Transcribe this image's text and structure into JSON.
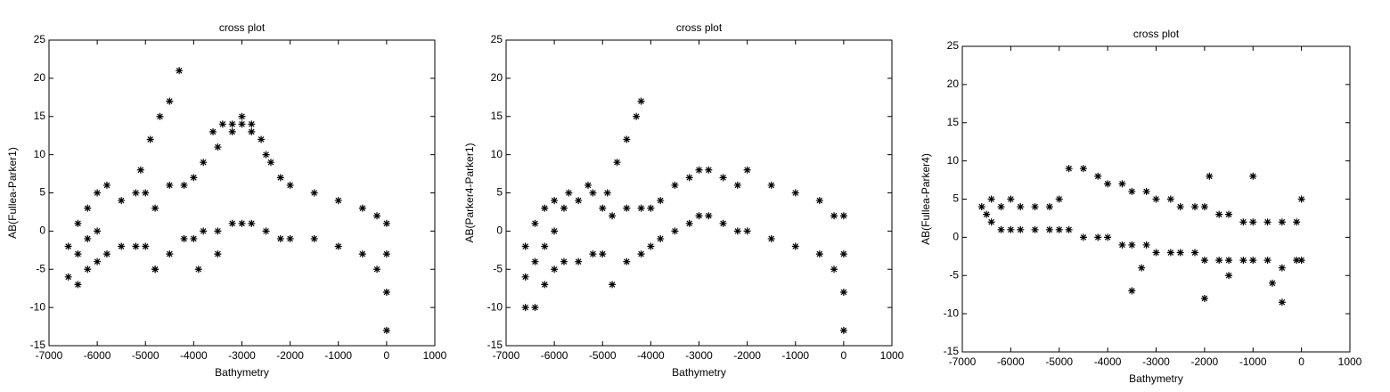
{
  "chart_data": [
    {
      "type": "scatter",
      "title": "cross plot",
      "x_label": "Bathymetry",
      "y_label": "AB(Fullea-Parker1)",
      "xlim": [
        -7000,
        1000
      ],
      "ylim": [
        -15,
        25
      ],
      "xticks": [
        -7000,
        -6000,
        -5000,
        -4000,
        -3000,
        -2000,
        -1000,
        0,
        1000
      ],
      "yticks": [
        -15,
        -10,
        -5,
        0,
        5,
        10,
        15,
        20,
        25
      ],
      "color": "#000000",
      "marker": "*",
      "x": [
        -6600,
        -6600,
        -6400,
        -6400,
        -6400,
        -6200,
        -6200,
        -6200,
        -6000,
        -6000,
        -6000,
        -5800,
        -5800,
        -5500,
        -5500,
        -5200,
        -5200,
        -5000,
        -5000,
        -4800,
        -4800,
        -4500,
        -4500,
        -4200,
        -4200,
        -4000,
        -4000,
        -3800,
        -3800,
        -3500,
        -3500,
        -3200,
        -3200,
        -3000,
        -3000,
        -2800,
        -2800,
        -2500,
        -2500,
        -2200,
        -2200,
        -2000,
        -2000,
        -1500,
        -1500,
        -1000,
        -1000,
        -500,
        -500,
        -200,
        -200,
        0,
        0,
        0,
        0,
        -5100,
        -4900,
        -4700,
        -4500,
        -4300,
        -3600,
        -3400,
        -3200,
        -3000,
        -2800,
        -2600,
        -2400,
        -3900,
        -4800,
        -3500
      ],
      "y": [
        -6,
        -2,
        -7,
        -3,
        1,
        -5,
        -1,
        3,
        -4,
        0,
        5,
        -3,
        6,
        -2,
        4,
        -2,
        5,
        -2,
        5,
        -5,
        3,
        -3,
        6,
        -1,
        6,
        -1,
        7,
        0,
        9,
        0,
        11,
        1,
        13,
        1,
        14,
        1,
        13,
        0,
        10,
        -1,
        7,
        -1,
        6,
        -1,
        5,
        -2,
        4,
        -3,
        3,
        -5,
        2,
        -13,
        -8,
        -3,
        1,
        8,
        12,
        15,
        17,
        21,
        13,
        14,
        14,
        15,
        14,
        12,
        9,
        -5,
        -5,
        -3
      ]
    },
    {
      "type": "scatter",
      "title": "cross plot",
      "x_label": "Bathymetry",
      "y_label": "AB(Parker4-Parker1)",
      "xlim": [
        -7000,
        1000
      ],
      "ylim": [
        -15,
        25
      ],
      "xticks": [
        -7000,
        -6000,
        -5000,
        -4000,
        -3000,
        -2000,
        -1000,
        0,
        1000
      ],
      "yticks": [
        -15,
        -10,
        -5,
        0,
        5,
        10,
        15,
        20,
        25
      ],
      "color": "#000000",
      "marker": "*",
      "x": [
        -6600,
        -6600,
        -6600,
        -6400,
        -6400,
        -6400,
        -6200,
        -6200,
        -6200,
        -6000,
        -6000,
        -6000,
        -5800,
        -5800,
        -5500,
        -5500,
        -5200,
        -5200,
        -5000,
        -5000,
        -4800,
        -4800,
        -4500,
        -4500,
        -4200,
        -4200,
        -4000,
        -4000,
        -3800,
        -3800,
        -3500,
        -3500,
        -3200,
        -3200,
        -3000,
        -3000,
        -2800,
        -2800,
        -2500,
        -2500,
        -2200,
        -2200,
        -2000,
        -2000,
        -1500,
        -1500,
        -1000,
        -1000,
        -500,
        -500,
        -200,
        -200,
        0,
        0,
        0,
        0,
        -4900,
        -4700,
        -4500,
        -4300,
        -4200,
        -5300,
        -5700
      ],
      "y": [
        -10,
        -6,
        -2,
        -10,
        -4,
        1,
        -7,
        -2,
        3,
        -5,
        0,
        4,
        -4,
        3,
        -4,
        4,
        -3,
        5,
        -3,
        3,
        -7,
        2,
        -4,
        3,
        -3,
        3,
        -2,
        3,
        -1,
        4,
        0,
        6,
        1,
        7,
        2,
        8,
        2,
        8,
        1,
        7,
        0,
        6,
        0,
        8,
        -1,
        6,
        -2,
        5,
        -3,
        4,
        -5,
        2,
        -13,
        -8,
        -3,
        2,
        5,
        9,
        12,
        15,
        17,
        6,
        5
      ]
    },
    {
      "type": "scatter",
      "title": "cross plot",
      "x_label": "Bathymetry",
      "y_label": "AB(Fullea-Parker4)",
      "xlim": [
        -7000,
        1000
      ],
      "ylim": [
        -15,
        25
      ],
      "xticks": [
        -7000,
        -6000,
        -5000,
        -4000,
        -3000,
        -2000,
        -1000,
        0,
        1000
      ],
      "yticks": [
        -15,
        -10,
        -5,
        0,
        5,
        10,
        15,
        20,
        25
      ],
      "color": "#000000",
      "marker": "*",
      "x": [
        -6600,
        -6500,
        -6400,
        -6400,
        -6200,
        -6200,
        -6000,
        -6000,
        -5800,
        -5800,
        -5500,
        -5500,
        -5200,
        -5200,
        -5000,
        -5000,
        -4800,
        -4800,
        -4500,
        -4500,
        -4200,
        -4200,
        -4000,
        -4000,
        -3700,
        -3700,
        -3500,
        -3500,
        -3200,
        -3200,
        -3000,
        -3000,
        -2700,
        -2700,
        -2500,
        -2500,
        -2200,
        -2200,
        -2000,
        -2000,
        -1700,
        -1700,
        -1500,
        -1500,
        -1200,
        -1200,
        -1000,
        -1000,
        -700,
        -700,
        -400,
        -400,
        -100,
        -100,
        0,
        0,
        -3500,
        -2000,
        -400,
        -1000,
        -1900,
        -3300,
        -1500,
        -600
      ],
      "y": [
        4,
        3,
        2,
        5,
        1,
        4,
        1,
        5,
        1,
        4,
        1,
        4,
        1,
        4,
        1,
        5,
        1,
        9,
        0,
        9,
        0,
        8,
        0,
        7,
        -1,
        7,
        -1,
        6,
        -1,
        6,
        -2,
        5,
        -2,
        5,
        -2,
        4,
        -2,
        4,
        -3,
        4,
        -3,
        3,
        -3,
        3,
        -3,
        2,
        -3,
        2,
        -3,
        2,
        -4,
        2,
        -3,
        2,
        -3,
        5,
        -7,
        -8,
        -8.5,
        8,
        8,
        -4,
        -5,
        -6
      ]
    }
  ]
}
